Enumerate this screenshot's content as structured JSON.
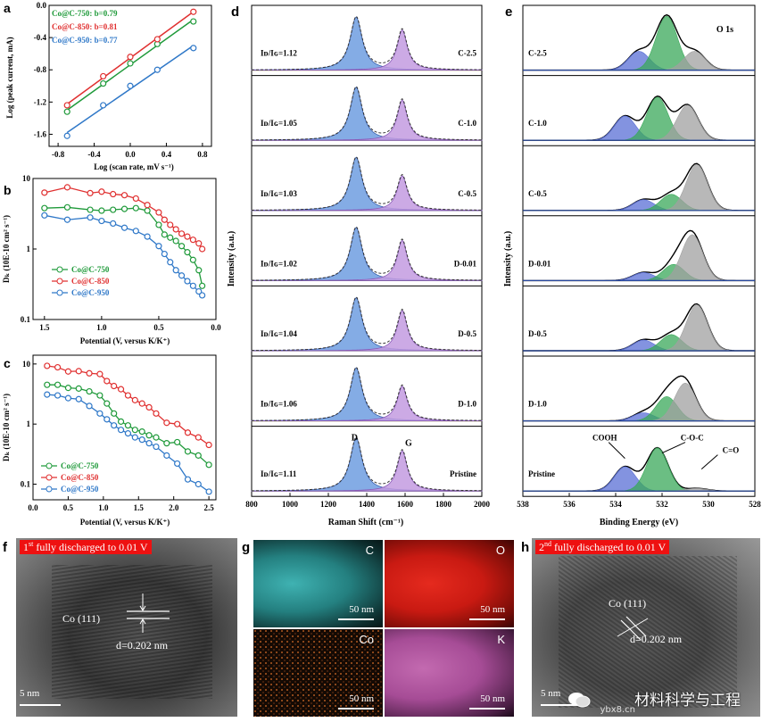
{
  "colors": {
    "green": "#1f9a3a",
    "red": "#e03030",
    "blue": "#2f78c8",
    "panel_bg": "#ffffff",
    "d_fill": "#6e9ee0",
    "g_fill": "#c39be0",
    "xps_white": "#ffffff",
    "xps_blue": "#5a6fd6",
    "xps_green": "#3aa85a",
    "xps_gray": "#a0a0a0"
  },
  "chart_data": [
    {
      "id": "a",
      "type": "scatter",
      "panel_letter": "a",
      "xlabel": "Log (scan rate, mV s⁻¹)",
      "ylabel": "Log (peak current, mA)",
      "xlim": [
        -0.9,
        0.9
      ],
      "ylim": [
        -1.75,
        0.0
      ],
      "xticks": [
        -0.8,
        -0.4,
        0.0,
        0.4,
        0.8
      ],
      "xtick_labels": [
        "-0.8",
        "-0.4",
        "0.0",
        "0.4",
        "0.8"
      ],
      "yticks": [
        0.0,
        -0.4,
        -0.8,
        -1.2,
        -1.6
      ],
      "ytick_labels": [
        "0.0",
        "-0.4",
        "-0.8",
        "-1.2",
        "-1.6"
      ],
      "series": [
        {
          "name": "Co@C-750: b=0.79",
          "color": "#1f9a3a",
          "x": [
            -0.7,
            -0.3,
            0.0,
            0.3,
            0.7
          ],
          "y": [
            -1.32,
            -0.97,
            -0.72,
            -0.48,
            -0.2
          ]
        },
        {
          "name": "Co@C-850: b=0.81",
          "color": "#e03030",
          "x": [
            -0.7,
            -0.3,
            0.0,
            0.3,
            0.7
          ],
          "y": [
            -1.24,
            -0.88,
            -0.64,
            -0.42,
            -0.08
          ]
        },
        {
          "name": "Co@C-950: b=0.77",
          "color": "#2f78c8",
          "x": [
            -0.7,
            -0.3,
            0.0,
            0.3,
            0.7
          ],
          "y": [
            -1.62,
            -1.24,
            -1.0,
            -0.8,
            -0.53
          ]
        }
      ]
    },
    {
      "id": "b",
      "type": "line",
      "panel_letter": "b",
      "xlabel": "Potential (V, versus K/K⁺)",
      "ylabel": "Dₖ (10E-10 cm² s⁻¹)",
      "xlim": [
        1.6,
        0.0
      ],
      "ylim_log": [
        0.1,
        10
      ],
      "yscale": "log",
      "xticks": [
        1.5,
        1.0,
        0.5,
        0.0
      ],
      "xtick_labels": [
        "1.5",
        "1.0",
        "0.5",
        "0.0"
      ],
      "yticks": [
        0.1,
        1,
        10
      ],
      "ytick_labels": [
        "0.1",
        "1",
        "10"
      ],
      "series": [
        {
          "name": "Co@C-750",
          "color": "#1f9a3a",
          "x": [
            1.5,
            1.3,
            1.1,
            1.0,
            0.9,
            0.8,
            0.7,
            0.6,
            0.5,
            0.45,
            0.4,
            0.35,
            0.3,
            0.25,
            0.2,
            0.15,
            0.12
          ],
          "y": [
            3.8,
            3.9,
            3.6,
            3.5,
            3.6,
            3.7,
            3.8,
            3.5,
            2.2,
            1.6,
            1.45,
            1.3,
            1.1,
            0.9,
            0.7,
            0.5,
            0.3
          ]
        },
        {
          "name": "Co@C-850",
          "color": "#e03030",
          "x": [
            1.5,
            1.3,
            1.1,
            1.0,
            0.9,
            0.8,
            0.7,
            0.6,
            0.5,
            0.45,
            0.4,
            0.35,
            0.3,
            0.25,
            0.2,
            0.15,
            0.12
          ],
          "y": [
            6.3,
            7.5,
            6.2,
            6.5,
            6.0,
            5.8,
            5.2,
            4.2,
            3.3,
            2.6,
            2.2,
            1.9,
            1.65,
            1.5,
            1.35,
            1.2,
            1.0
          ]
        },
        {
          "name": "Co@C-950",
          "color": "#2f78c8",
          "x": [
            1.5,
            1.3,
            1.1,
            1.0,
            0.9,
            0.8,
            0.7,
            0.6,
            0.5,
            0.45,
            0.4,
            0.35,
            0.3,
            0.25,
            0.2,
            0.15,
            0.12
          ],
          "y": [
            3.0,
            2.6,
            2.8,
            2.5,
            2.3,
            2.0,
            1.8,
            1.5,
            1.1,
            0.85,
            0.65,
            0.5,
            0.42,
            0.35,
            0.3,
            0.25,
            0.22
          ]
        }
      ]
    },
    {
      "id": "c",
      "type": "line",
      "panel_letter": "c",
      "xlabel": "Potential (V, versus K/K⁺)",
      "ylabel": "Dₖ (10E-10 cm² s⁻¹)",
      "xlim": [
        0.0,
        2.6
      ],
      "ylim_log": [
        0.055,
        14
      ],
      "yscale": "log",
      "xticks": [
        0.0,
        0.5,
        1.0,
        1.5,
        2.0,
        2.5
      ],
      "xtick_labels": [
        "0.0",
        "0.5",
        "1.0",
        "1.5",
        "2.0",
        "2.5"
      ],
      "yticks": [
        0.1,
        1,
        10
      ],
      "ytick_labels": [
        "0.1",
        "1",
        "10"
      ],
      "series": [
        {
          "name": "Co@C-750",
          "color": "#1f9a3a",
          "x": [
            0.2,
            0.35,
            0.5,
            0.65,
            0.8,
            0.95,
            1.05,
            1.15,
            1.25,
            1.35,
            1.45,
            1.55,
            1.65,
            1.75,
            1.9,
            2.05,
            2.2,
            2.35,
            2.5
          ],
          "y": [
            4.5,
            4.5,
            4.0,
            3.9,
            3.5,
            3.0,
            2.2,
            1.5,
            1.1,
            0.95,
            0.8,
            0.75,
            0.65,
            0.6,
            0.48,
            0.5,
            0.35,
            0.3,
            0.21
          ]
        },
        {
          "name": "Co@C-850",
          "color": "#e03030",
          "x": [
            0.2,
            0.35,
            0.5,
            0.65,
            0.8,
            0.95,
            1.05,
            1.15,
            1.25,
            1.35,
            1.45,
            1.55,
            1.65,
            1.75,
            1.9,
            2.05,
            2.2,
            2.35,
            2.5
          ],
          "y": [
            9.3,
            8.8,
            7.5,
            7.6,
            7.0,
            6.8,
            5.2,
            4.3,
            3.8,
            3.0,
            2.5,
            2.2,
            1.9,
            1.5,
            1.05,
            1.0,
            0.72,
            0.6,
            0.45
          ]
        },
        {
          "name": "Co@C-950",
          "color": "#2f78c8",
          "x": [
            0.2,
            0.35,
            0.5,
            0.65,
            0.8,
            0.95,
            1.05,
            1.15,
            1.25,
            1.35,
            1.45,
            1.55,
            1.65,
            1.75,
            1.9,
            2.05,
            2.2,
            2.35,
            2.5
          ],
          "y": [
            3.1,
            3.0,
            2.7,
            2.6,
            2.0,
            1.5,
            1.2,
            0.95,
            0.8,
            0.7,
            0.6,
            0.55,
            0.48,
            0.42,
            0.3,
            0.22,
            0.12,
            0.1,
            0.075
          ]
        }
      ]
    },
    {
      "id": "d",
      "type": "line",
      "panel_letter": "d",
      "xlabel": "Raman Shift (cm⁻¹)",
      "ylabel": "Intensity (a.u.)",
      "xlim": [
        800,
        2000
      ],
      "xticks": [
        800,
        1000,
        1200,
        1400,
        1600,
        1800,
        2000
      ],
      "xtick_labels": [
        "800",
        "1000",
        "1200",
        "1400",
        "1600",
        "1800",
        "2000"
      ],
      "peak_labels": {
        "d": "D",
        "g": "G"
      },
      "spectra": [
        {
          "sample": "C-2.5",
          "ratio": "Iᴅ/Iɢ=1.12",
          "d_height": 0.95,
          "g_height": 0.72
        },
        {
          "sample": "C-1.0",
          "ratio": "Iᴅ/Iɢ=1.05",
          "d_height": 0.95,
          "g_height": 0.72
        },
        {
          "sample": "C-0.5",
          "ratio": "Iᴅ/Iɢ=1.03",
          "d_height": 0.95,
          "g_height": 0.62
        },
        {
          "sample": "D-0.01",
          "ratio": "Iᴅ/Iɢ=1.02",
          "d_height": 0.95,
          "g_height": 0.72
        },
        {
          "sample": "D-0.5",
          "ratio": "Iᴅ/Iɢ=1.04",
          "d_height": 0.95,
          "g_height": 0.72
        },
        {
          "sample": "D-1.0",
          "ratio": "Iᴅ/Iɢ=1.06",
          "d_height": 0.95,
          "g_height": 0.62
        },
        {
          "sample": "Pristine",
          "ratio": "Iᴅ/Iɢ=1.11",
          "d_height": 0.95,
          "g_height": 0.72
        }
      ]
    },
    {
      "id": "e",
      "type": "line",
      "panel_letter": "e",
      "xlabel": "Binding Energy (eV)",
      "ylabel": "Intensity (a.u.)",
      "title": "O 1s",
      "xlim": [
        538,
        528
      ],
      "xticks": [
        538,
        536,
        534,
        532,
        530,
        528
      ],
      "xtick_labels": [
        "538",
        "536",
        "534",
        "532",
        "530",
        "528"
      ],
      "annotations": [
        "COOH",
        "C-O-C",
        "C=O"
      ],
      "spectra": [
        {
          "sample": "C-2.5",
          "peaks": [
            {
              "center": 533.0,
              "height": 0.35,
              "color": "blue"
            },
            {
              "center": 531.8,
              "height": 1.0,
              "color": "green"
            },
            {
              "center": 530.6,
              "height": 0.35,
              "color": "gray"
            }
          ]
        },
        {
          "sample": "C-1.0",
          "peaks": [
            {
              "center": 533.6,
              "height": 0.45,
              "color": "blue"
            },
            {
              "center": 532.2,
              "height": 0.8,
              "color": "green"
            },
            {
              "center": 530.9,
              "height": 0.65,
              "color": "gray"
            }
          ]
        },
        {
          "sample": "C-0.5",
          "peaks": [
            {
              "center": 532.8,
              "height": 0.2,
              "color": "blue"
            },
            {
              "center": 531.6,
              "height": 0.3,
              "color": "green"
            },
            {
              "center": 530.5,
              "height": 0.85,
              "color": "gray"
            }
          ]
        },
        {
          "sample": "D-0.01",
          "peaks": [
            {
              "center": 532.8,
              "height": 0.15,
              "color": "blue"
            },
            {
              "center": 531.5,
              "height": 0.3,
              "color": "green"
            },
            {
              "center": 530.7,
              "height": 0.85,
              "color": "gray"
            }
          ]
        },
        {
          "sample": "D-0.5",
          "peaks": [
            {
              "center": 532.8,
              "height": 0.2,
              "color": "blue"
            },
            {
              "center": 531.6,
              "height": 0.3,
              "color": "green"
            },
            {
              "center": 530.5,
              "height": 0.85,
              "color": "gray"
            }
          ]
        },
        {
          "sample": "D-1.0",
          "peaks": [
            {
              "center": 532.8,
              "height": 0.15,
              "color": "blue"
            },
            {
              "center": 531.8,
              "height": 0.45,
              "color": "green"
            },
            {
              "center": 531.0,
              "height": 0.7,
              "color": "gray"
            }
          ]
        },
        {
          "sample": "Pristine",
          "peaks": [
            {
              "center": 533.6,
              "height": 0.45,
              "color": "blue"
            },
            {
              "center": 532.2,
              "height": 0.8,
              "color": "green"
            },
            {
              "center": 530.5,
              "height": 0.05,
              "color": "gray"
            }
          ]
        }
      ]
    }
  ],
  "panels": {
    "f": {
      "letter": "f",
      "banner_pre": "1",
      "banner_sup": "st",
      "banner_post": " fully discharged to 0.01 V",
      "plane": "Co (111)",
      "spacing": "d=0.202 nm",
      "scale": "5 nm"
    },
    "g": {
      "letter": "g",
      "maps": [
        {
          "element": "C",
          "scale": "50 nm"
        },
        {
          "element": "O",
          "scale": "50 nm"
        },
        {
          "element": "Co",
          "scale": "50 nm"
        },
        {
          "element": "K",
          "scale": "50 nm"
        }
      ]
    },
    "h": {
      "letter": "h",
      "banner_pre": "2",
      "banner_sup": "nd",
      "banner_post": " fully discharged to 0.01 V",
      "plane": "Co (111)",
      "spacing": "d=0.202 nm",
      "scale": "5 nm",
      "watermark": "材料科学与工程",
      "site": "ybx8.cn"
    }
  }
}
